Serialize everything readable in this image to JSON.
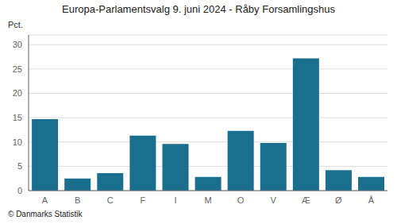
{
  "chart_data": {
    "type": "bar",
    "title": "Europa-Parlamentsvalg 9. juni 2024 - Råby Forsamlingshus",
    "categories": [
      "A",
      "B",
      "C",
      "F",
      "I",
      "M",
      "O",
      "V",
      "Æ",
      "Ø",
      "Å"
    ],
    "values": [
      14.7,
      2.5,
      3.6,
      11.3,
      9.6,
      2.8,
      12.3,
      9.8,
      27.2,
      4.2,
      2.8
    ],
    "color": "#1a6e8e",
    "ylabel": "Pct.",
    "ylim": [
      0,
      32
    ],
    "yticks": [
      0,
      5,
      10,
      15,
      20,
      25,
      30
    ],
    "grid": true,
    "footer": "© Danmarks Statistik"
  }
}
